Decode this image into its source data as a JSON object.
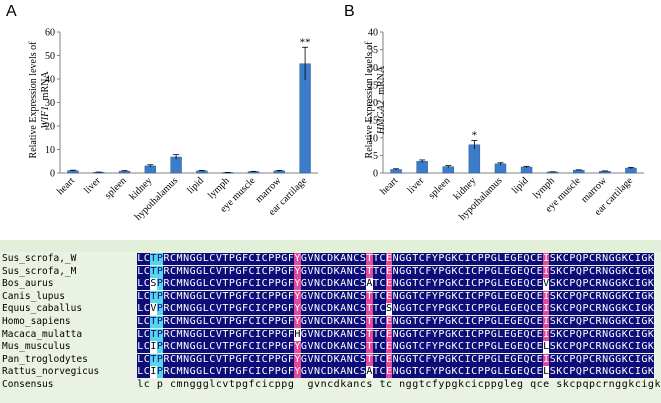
{
  "panels": [
    {
      "letter": "A",
      "ylabel_prefix": "Relative Expression levels of",
      "ylabel_gene": "WIF1",
      "ylabel_suffix": "mRNA"
    },
    {
      "letter": "B",
      "ylabel_prefix": "Relative Expression levels of",
      "ylabel_gene": "HMGA2",
      "ylabel_suffix": "mRNA"
    }
  ],
  "chart_data": [
    {
      "type": "bar",
      "title": "",
      "xlabel": "",
      "ylabel": "Relative Expression levels of WIF1 mRNA",
      "categories": [
        "heart",
        "liver",
        "spleen",
        "kidney",
        "hypothalamus",
        "lipid",
        "lymph",
        "eye muscle",
        "marrow",
        "ear cartilage"
      ],
      "values": [
        1.0,
        0.3,
        0.8,
        3.0,
        6.8,
        0.9,
        0.2,
        0.6,
        0.9,
        46.5
      ],
      "errors": [
        0.2,
        0.1,
        0.2,
        0.5,
        1.0,
        0.2,
        0.05,
        0.1,
        0.2,
        7.0
      ],
      "annotations": [
        "",
        "",
        "",
        "",
        "",
        "",
        "",
        "",
        "",
        "**"
      ],
      "ylim": [
        0,
        60
      ],
      "yticks": [
        0,
        10,
        20,
        30,
        40,
        50,
        60
      ],
      "bar_color": "#3d7cc9"
    },
    {
      "type": "bar",
      "title": "",
      "xlabel": "",
      "ylabel": "Relative Expression levels of HMGA2 mRNA",
      "categories": [
        "heart",
        "liver",
        "spleen",
        "kidney",
        "hypothalamus",
        "lipid",
        "lymph",
        "eye muscle",
        "marrow",
        "ear cartilage"
      ],
      "values": [
        1.0,
        3.3,
        1.8,
        8.0,
        2.6,
        1.7,
        0.3,
        0.8,
        0.5,
        1.4
      ],
      "errors": [
        0.2,
        0.4,
        0.3,
        1.2,
        0.3,
        0.2,
        0.05,
        0.1,
        0.1,
        0.2
      ],
      "annotations": [
        "",
        "",
        "",
        "*",
        "",
        "",
        "",
        "",
        "",
        ""
      ],
      "ylim": [
        0,
        40
      ],
      "yticks": [
        0,
        5,
        10,
        15,
        20,
        25,
        30,
        35,
        40
      ],
      "bar_color": "#3d7cc9"
    }
  ],
  "alignment": {
    "rows": [
      {
        "name": "Sus_scrofa,_W",
        "seq": "LCTPRCMNGGLCVTPGFCICPPGFYGVNCDKANCSTTCENGGTCFYPGKCICPPGLEGEQCEISKCPQPCRNGGKCIGK"
      },
      {
        "name": "Sus_scrofa,_M",
        "seq": "LCTPRCMNGGLCVTPGFCICPPGFYGVNCDKANCSTTCENGGTCFYPGKCICPPGLEGEQCEISKCPQPCRNGGKCIGK"
      },
      {
        "name": "Bos_aurus",
        "seq": "LCSPRCMNGGLCVTPGFCICPPGFYGVNCDKANCSATCENGGTCFYPGKCICPPGLEGEQCEVSKCPQPCRNGGKCIGK"
      },
      {
        "name": "Canis_lupus",
        "seq": "LCTPRCMNGGLCVTPGFCICPPGFYGVNCDKANCSTTCENGGTCFYPGKCICPPGLEGEQCEISKCPQPCRNGGKCIGK"
      },
      {
        "name": "Equus_caballus",
        "seq": "LCVPRCMNGGLCVTPGFCICPPGFYGVNCDKANCSTTCSNGGTCFYPGKCICPPGLEGEQCEISKCPQPCRNGGKCIGK"
      },
      {
        "name": "Homo_sapiens",
        "seq": "LCTPRCMNGGLCVTPGFCICPPGFYGVNCDKANCSTTCENGGTCFYPGKCICPPGLEGEQCEISKCPQPCRNGGKCIGK"
      },
      {
        "name": "Macaca_mulatta",
        "seq": "LCTPRCMNGGLCVTPGFCICPPGFHGVNCDKANCSTTCENGGTCFYPGKCICPPGLEGEQCEISKCPQPCRNGGKCIGK"
      },
      {
        "name": "Mus_musculus",
        "seq": "LCIPRCMNGGLCVTPGFCICPPGFYGVNCDKANCSTTCENGGTCFYPGKCICPPGLEGEQCELSKCPQPCRNGGKCIGK"
      },
      {
        "name": "Pan_troglodytes",
        "seq": "LCTPRCMNGGLCVTPGFCICPPGFYGVNCDKANCSTTCENGGTCFYPGKCICPPGLEGEQCEISKCPQPCRNGGKCIGK"
      },
      {
        "name": "Rattus_norvegicus",
        "seq": "LCIPRCMNGGLCVTPGFCICPPGFYGVNCDKANCSATCENGGTCFYPGKCICPPGLEGEQCELSKCPQPCRNGGKCIGK"
      }
    ],
    "consensus_name": "Consensus",
    "consensus_seq": "lc p cmnggglcvtpgfcicppg  gvncdkancs tc nggtcfypgkcicppgleg qce skcpqpcrnggkcigk",
    "colors": {
      "conserved": "#0d0d7a",
      "partial": "#e5489a",
      "cyan": "#55d6ea"
    }
  }
}
